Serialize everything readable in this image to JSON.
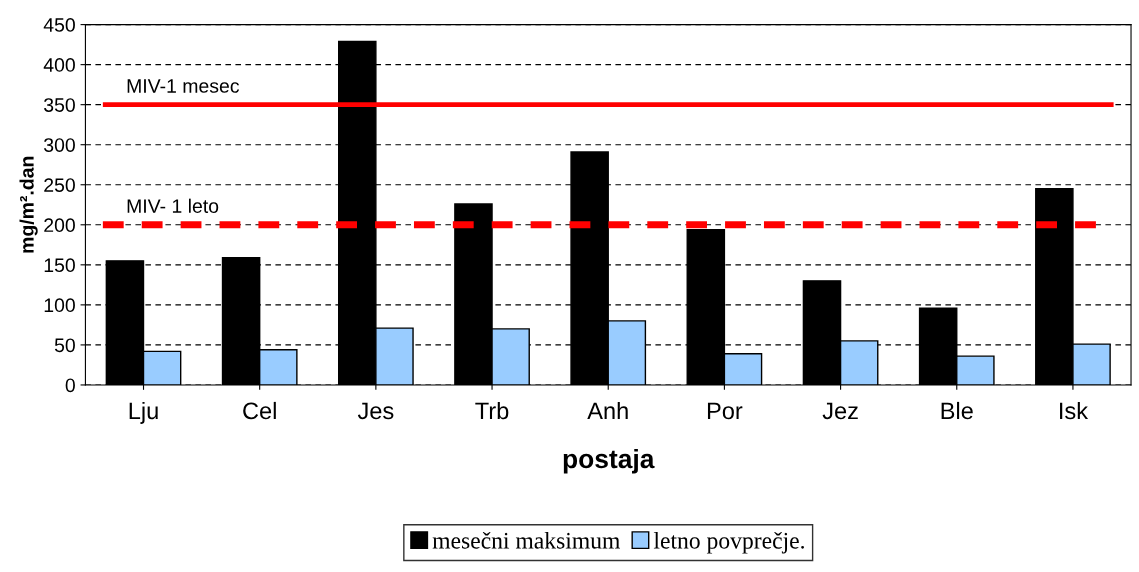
{
  "chart_data": {
    "type": "bar",
    "xlabel": "postaja",
    "ylabel": "mg/m².dan",
    "categories": [
      "Lju",
      "Cel",
      "Jes",
      "Trb",
      "Anh",
      "Por",
      "Jez",
      "Ble",
      "Isk"
    ],
    "series": [
      {
        "name": "mesečni maksimum",
        "color": "#000000",
        "values": [
          155,
          159,
          429,
          226,
          291,
          194,
          130,
          96,
          245
        ]
      },
      {
        "name": "letno povprečje.",
        "color": "#99ccff",
        "values": [
          42,
          44,
          71,
          70,
          80,
          39,
          55,
          36,
          51
        ]
      }
    ],
    "ylim": [
      0,
      450
    ],
    "yticks": [
      0,
      50,
      100,
      150,
      200,
      250,
      300,
      350,
      400,
      450
    ],
    "grid": "y",
    "legend": "bottom",
    "ref_lines": [
      {
        "axis": "y",
        "value": 350,
        "label": "MIV-1 mesec",
        "color": "#ff0000",
        "line_style": "solid"
      },
      {
        "axis": "y",
        "value": 200,
        "label": "MIV- 1 leto",
        "color": "#ff0000",
        "line_style": "dashed"
      }
    ]
  }
}
